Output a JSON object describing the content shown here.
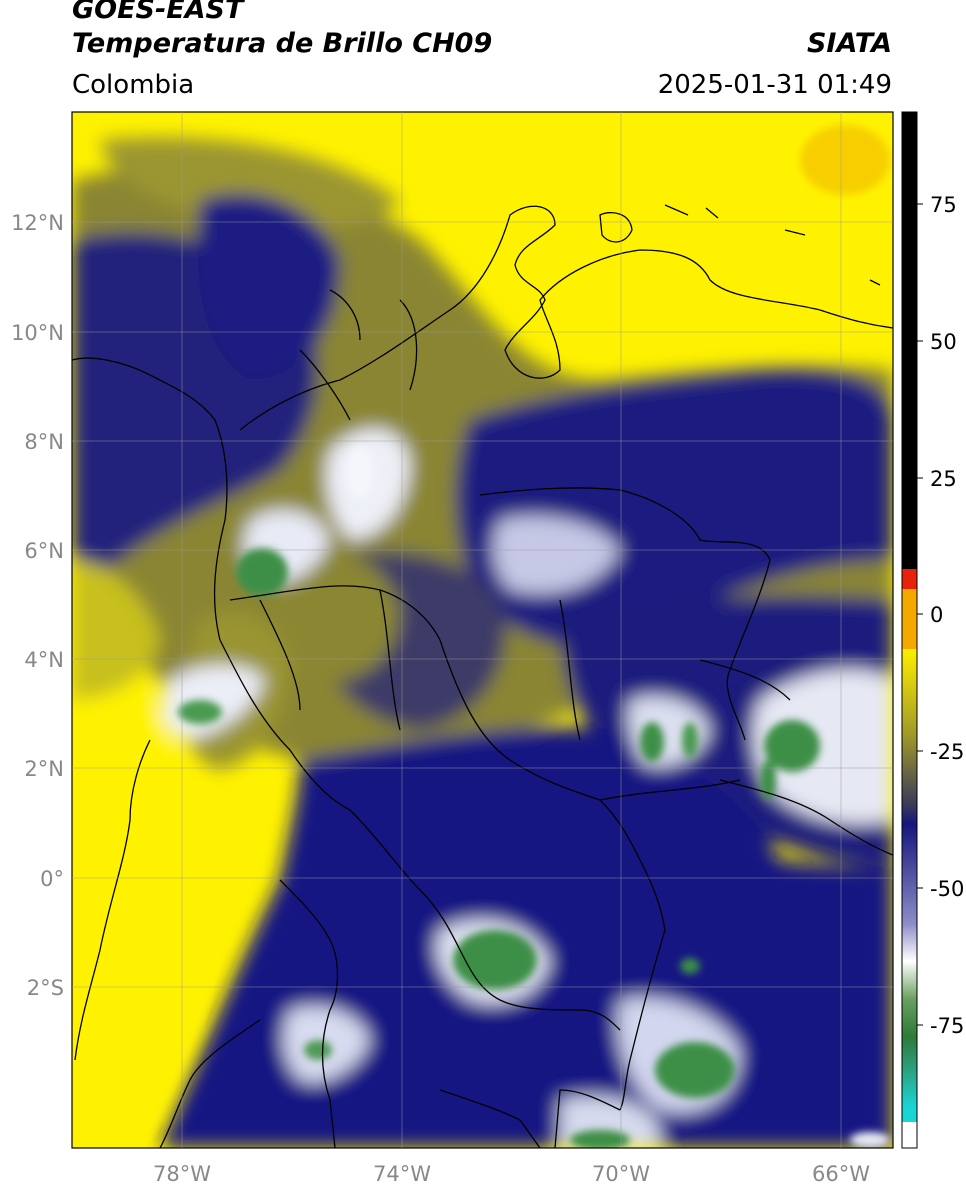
{
  "header": {
    "satellite": "GOES-EAST",
    "product": "Temperatura de Brillo CH09",
    "brand": "SIATA",
    "region": "Colombia",
    "datetime": "2025-01-31 01:49"
  },
  "axes": {
    "lat_labels": [
      "12°N",
      "10°N",
      "8°N",
      "6°N",
      "4°N",
      "2°N",
      "0°",
      "2°S"
    ],
    "lon_labels": [
      "78°W",
      "74°W",
      "70°W",
      "66°W"
    ]
  },
  "colorbar": {
    "labels": [
      "75",
      "50",
      "25",
      "0",
      "-25",
      "-50",
      "-75"
    ],
    "colors": {
      "black": "#000000",
      "red": "#e8220a",
      "orange": "#f08a00",
      "yellow": "#ffef00",
      "olive": "#8c8a2a",
      "navy": "#16167e",
      "white": "#ffffff",
      "green": "#3a8a3a",
      "cyan": "#19d6d6"
    }
  },
  "map_colors": {
    "clear_warm": "#fff200",
    "moist_mid": "#7d7a2e",
    "cloud_cold": "#1b1a80",
    "very_cold": "#f0f2f8",
    "coldest": "#3d8f46",
    "coastline": "#000000"
  }
}
